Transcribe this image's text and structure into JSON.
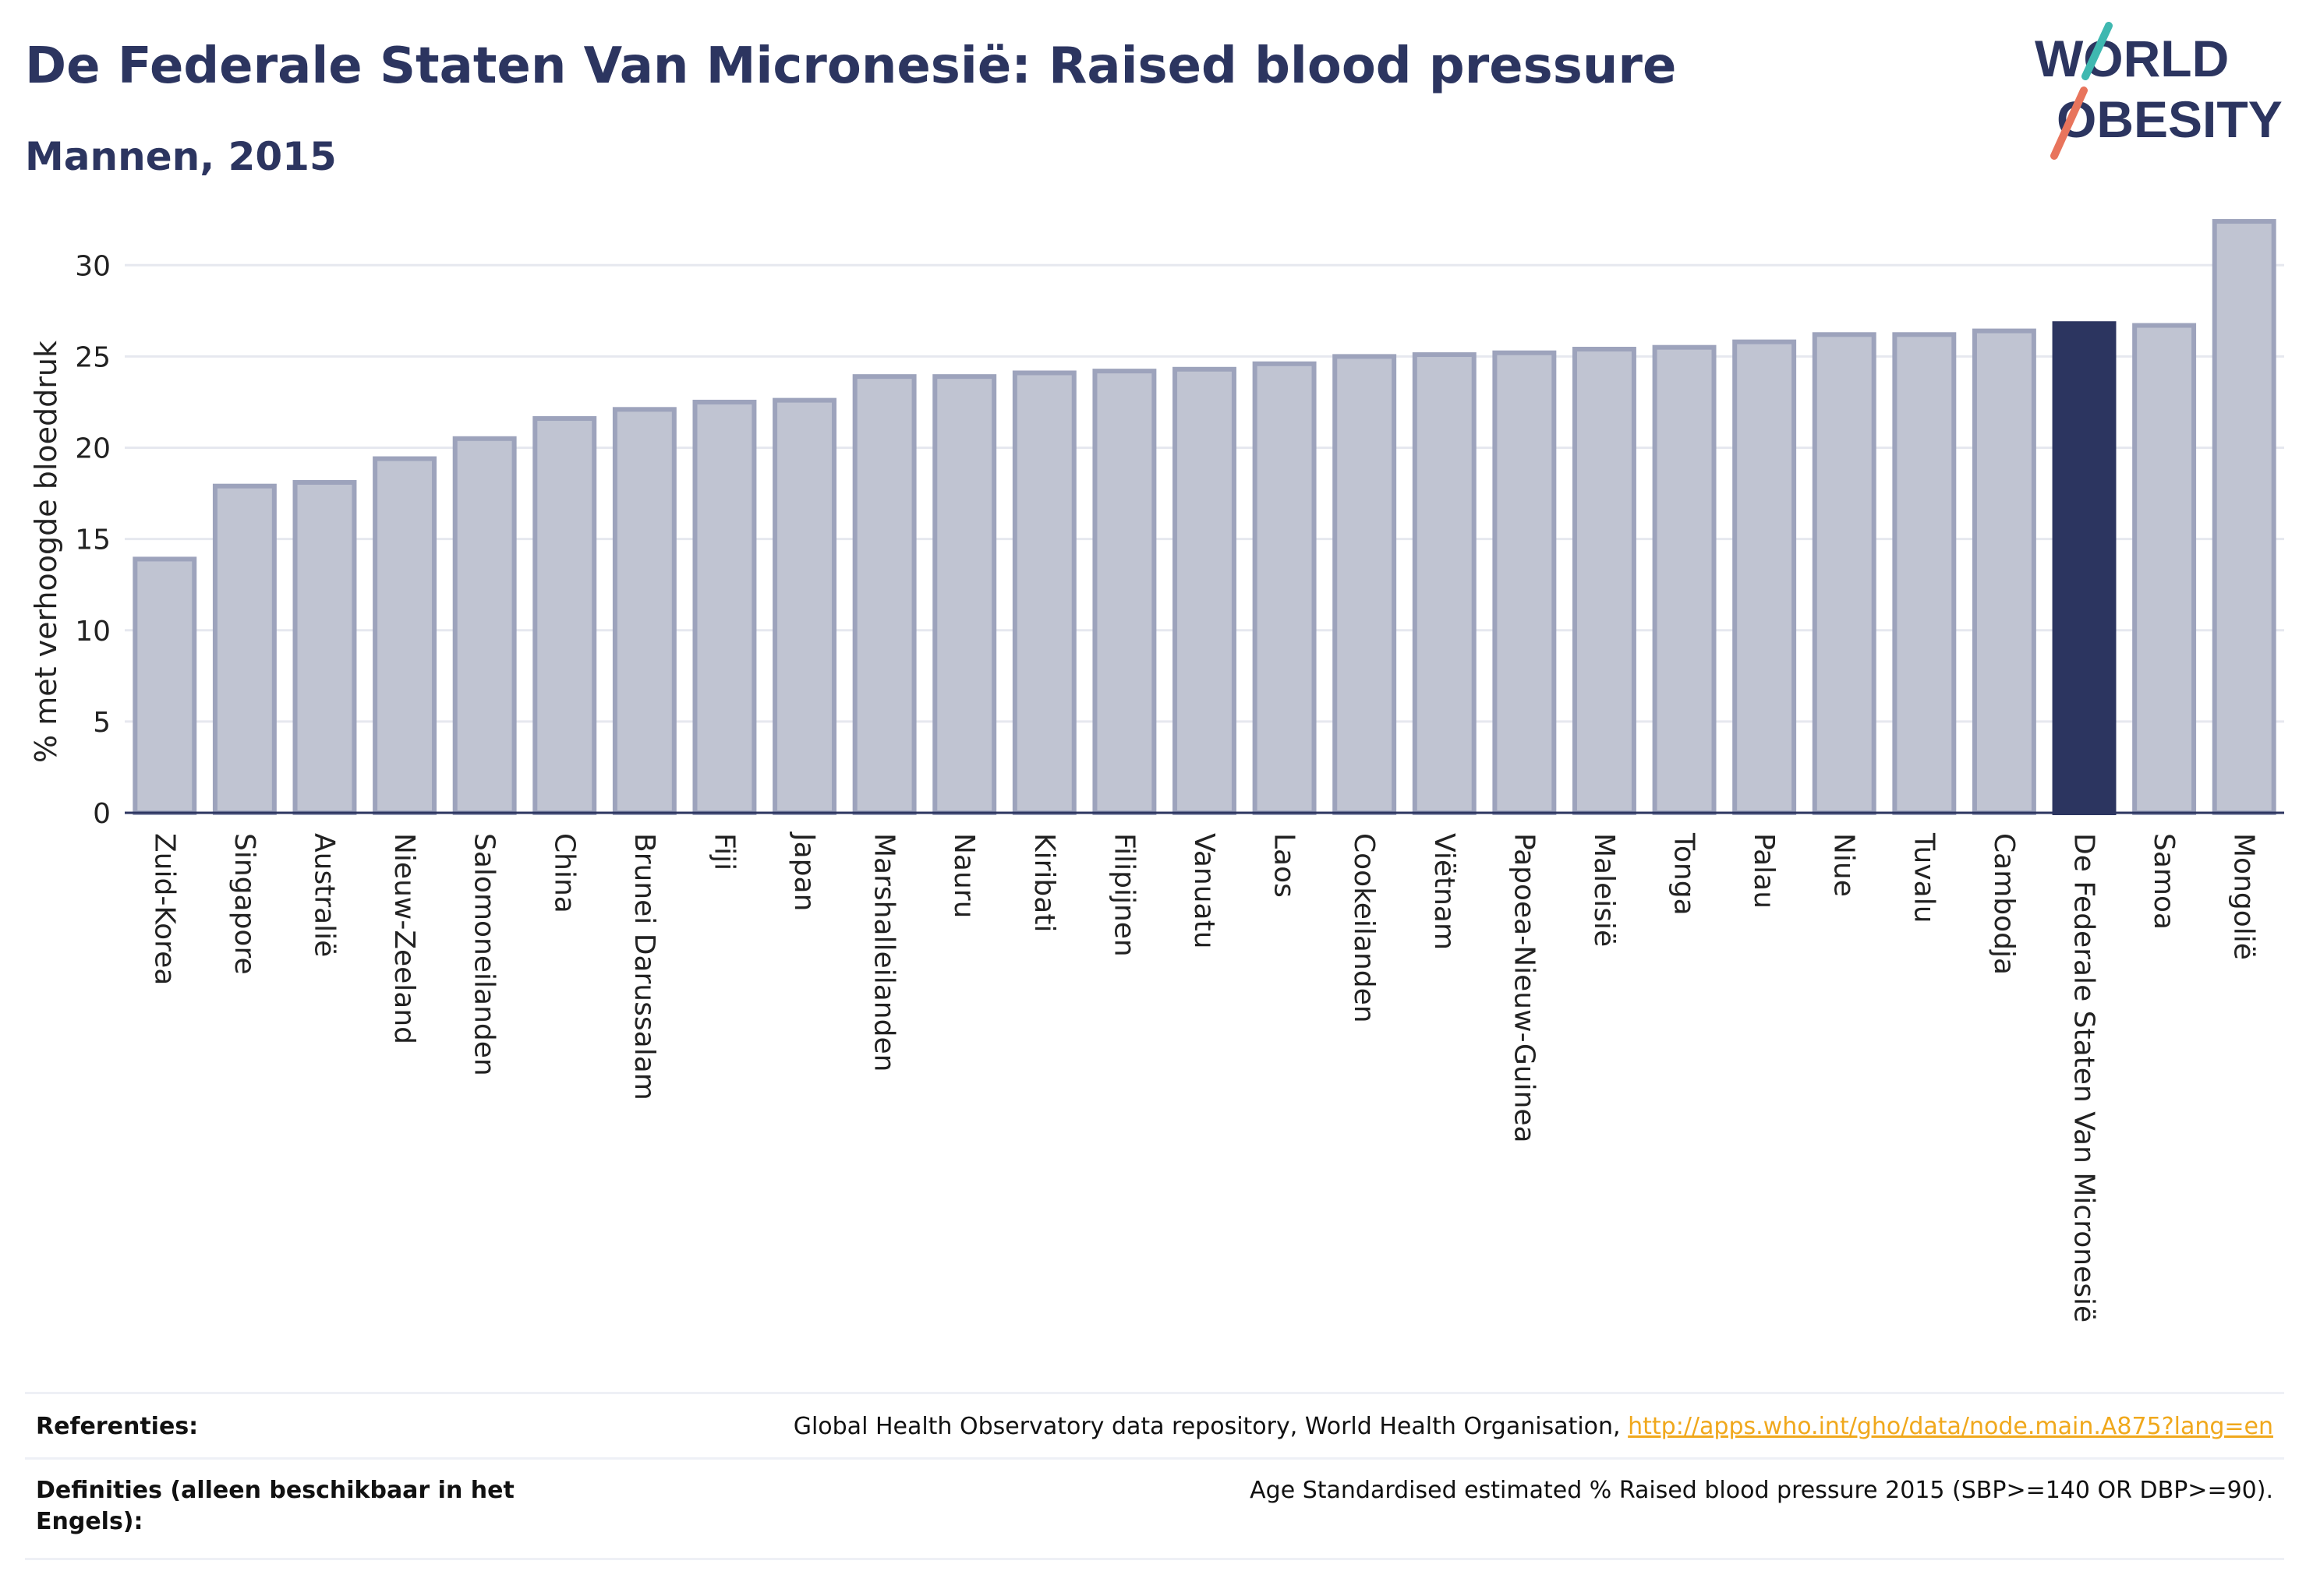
{
  "header": {
    "title": "De Federale Staten Van Micronesië: Raised blood pressure",
    "subtitle": "Mannen, 2015",
    "logo_text": [
      "WORLD",
      "OBESITY"
    ]
  },
  "colors": {
    "primary": "#2c3560",
    "bar_default": "#c0c4d2",
    "bar_default_stroke": "#9da3bc",
    "logo_teal": "#3fb8b0",
    "logo_coral": "#e8745c",
    "link": "#f0a81c"
  },
  "chart_data": {
    "type": "bar",
    "ylabel": "% met verhoogde bloeddruk",
    "ylim": [
      0,
      33
    ],
    "yticks": [
      0,
      5,
      10,
      15,
      20,
      25,
      30
    ],
    "grid": true,
    "highlight": "De Federale Staten Van Micronesië",
    "categories": [
      "Zuid-Korea",
      "Singapore",
      "Australië",
      "Nieuw-Zeeland",
      "Salomoneilanden",
      "China",
      "Brunei Darussalam",
      "Fiji",
      "Japan",
      "Marshalleilanden",
      "Nauru",
      "Kiribati",
      "Filipijnen",
      "Vanuatu",
      "Laos",
      "Cookeilanden",
      "Viëtnam",
      "Papoea-Nieuw-Guinea",
      "Maleisië",
      "Tonga",
      "Palau",
      "Niue",
      "Tuvalu",
      "Cambodja",
      "De Federale Staten Van Micronesië",
      "Samoa",
      "Mongolië"
    ],
    "values": [
      13.9,
      17.9,
      18.1,
      19.4,
      20.5,
      21.6,
      22.1,
      22.5,
      22.6,
      23.9,
      23.9,
      24.1,
      24.2,
      24.3,
      24.6,
      25.0,
      25.1,
      25.2,
      25.4,
      25.5,
      25.8,
      26.2,
      26.2,
      26.4,
      26.8,
      26.7,
      32.4
    ]
  },
  "footer": {
    "references_label": "Referenties:",
    "references_text": "Global Health Observatory data repository, World Health Organisation,",
    "references_link": "http://apps.who.int/gho/data/node.main.A875?lang=en",
    "definitions_label": "Definities (alleen beschikbaar in het Engels):",
    "definitions_text": "Age Standardised estimated % Raised blood pressure 2015 (SBP>=140 OR DBP>=90)."
  }
}
